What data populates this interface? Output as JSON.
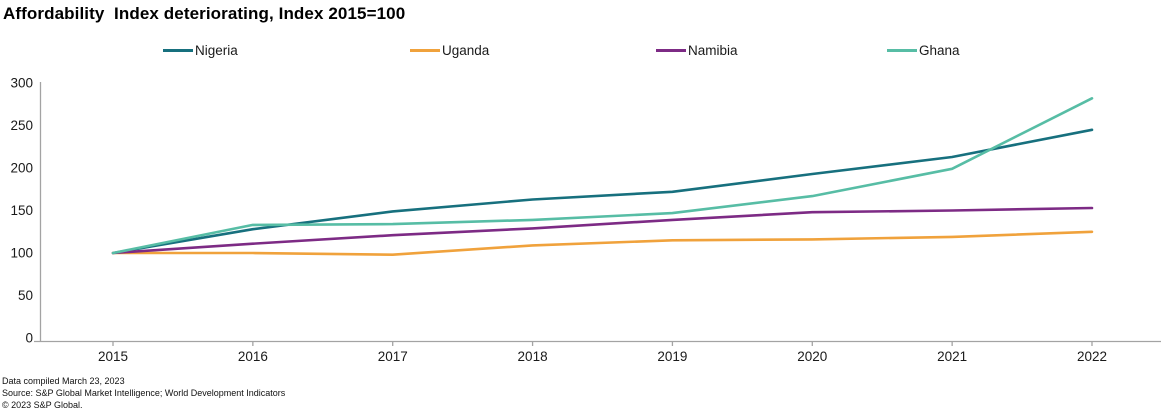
{
  "title": "Affordability  Index deteriorating, Index 2015=100",
  "chart_data": {
    "type": "line",
    "x": [
      2015,
      2016,
      2017,
      2018,
      2019,
      2020,
      2021,
      2022
    ],
    "series": [
      {
        "name": "Nigeria",
        "color": "#17707E",
        "values": [
          100,
          128,
          149,
          163,
          172,
          193,
          213,
          245
        ]
      },
      {
        "name": "Uganda",
        "color": "#F0A23C",
        "values": [
          100,
          100,
          98,
          109,
          115,
          116,
          119,
          125
        ]
      },
      {
        "name": "Namibia",
        "color": "#7D2B85",
        "values": [
          100,
          111,
          121,
          129,
          139,
          148,
          150,
          153
        ]
      },
      {
        "name": "Ghana",
        "color": "#57BDA5",
        "values": [
          100,
          133,
          134,
          139,
          147,
          167,
          199,
          282
        ]
      }
    ],
    "title": "Affordability  Index deteriorating, Index 2015=100",
    "xlabel": "",
    "ylabel": "",
    "ylim": [
      0,
      300
    ],
    "yticks": [
      0,
      50,
      100,
      150,
      200,
      250,
      300
    ],
    "legend_position": "top",
    "gridlines": false,
    "axis_color": "#A3A3A3",
    "tick_label_color": "#1A1A1A"
  },
  "footnotes": [
    "Data compiled March 23, 2023",
    "Source: S&P Global Market Intelligence; World Development Indicators",
    "© 2023 S&P Global."
  ]
}
